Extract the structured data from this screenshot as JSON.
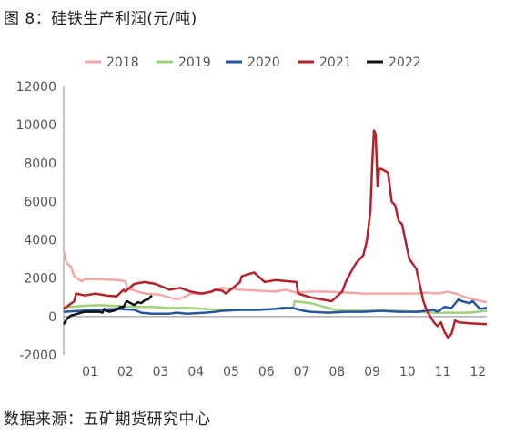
{
  "title": "图 8：硅铁生产利润(元/吨)",
  "source": "数据来源：五矿期货研究中心",
  "chart_data": {
    "type": "line",
    "title": "图 8：硅铁生产利润(元/吨)",
    "xlabel": "",
    "ylabel": "",
    "ylim": [
      -2000,
      12000
    ],
    "yticks": [
      -2000,
      0,
      2000,
      4000,
      6000,
      8000,
      10000,
      12000
    ],
    "xlim": [
      0,
      12
    ],
    "xticks": [
      {
        "pos": 0.75,
        "label": "01"
      },
      {
        "pos": 1.75,
        "label": "02"
      },
      {
        "pos": 2.75,
        "label": "03"
      },
      {
        "pos": 3.75,
        "label": "04"
      },
      {
        "pos": 4.75,
        "label": "05"
      },
      {
        "pos": 5.75,
        "label": "06"
      },
      {
        "pos": 6.75,
        "label": "07"
      },
      {
        "pos": 7.75,
        "label": "08"
      },
      {
        "pos": 8.75,
        "label": "09"
      },
      {
        "pos": 9.75,
        "label": "10"
      },
      {
        "pos": 10.75,
        "label": "11"
      },
      {
        "pos": 11.75,
        "label": "12"
      }
    ],
    "grid": false,
    "legend_position": "top",
    "series": [
      {
        "name": "2018",
        "color": "#f2a7a7",
        "width": 2.5,
        "x": [
          0,
          0.08,
          0.2,
          0.3,
          0.5,
          0.6,
          1.0,
          1.5,
          1.75,
          1.8,
          2.1,
          2.3,
          2.7,
          3.0,
          3.2,
          3.4,
          3.6,
          4.0,
          4.3,
          4.5,
          5.0,
          5.5,
          6.0,
          6.3,
          6.6,
          7.0,
          7.5,
          8.0,
          8.5,
          9.0,
          9.5,
          10.0,
          10.3,
          10.6,
          10.9,
          11.0,
          11.2,
          11.4,
          11.6,
          12.0
        ],
        "y": [
          3400,
          2800,
          2600,
          2100,
          1850,
          1950,
          1950,
          1900,
          1850,
          1500,
          1300,
          1200,
          1150,
          1000,
          900,
          1000,
          1200,
          1200,
          1400,
          1500,
          1400,
          1350,
          1300,
          1400,
          1250,
          1300,
          1300,
          1250,
          1200,
          1200,
          1200,
          1200,
          1250,
          1200,
          1300,
          1250,
          1150,
          1000,
          900,
          750
        ]
      },
      {
        "name": "2019",
        "color": "#9ed17a",
        "width": 2.5,
        "x": [
          0,
          0.2,
          0.5,
          1.0,
          1.5,
          2.0,
          2.5,
          3.0,
          3.5,
          4.0,
          4.5,
          5.0,
          5.5,
          6.0,
          6.5,
          6.55,
          7.0,
          7.3,
          7.7,
          8.0,
          8.5,
          9.0,
          9.5,
          10.0,
          10.5,
          11.0,
          11.5,
          12.0
        ],
        "y": [
          500,
          500,
          550,
          600,
          550,
          500,
          500,
          450,
          450,
          400,
          350,
          350,
          350,
          400,
          420,
          800,
          700,
          550,
          350,
          300,
          300,
          300,
          300,
          250,
          200,
          200,
          200,
          300
        ]
      },
      {
        "name": "2020",
        "color": "#2656a3",
        "width": 2.5,
        "x": [
          0,
          0.5,
          1.0,
          1.5,
          2.0,
          2.2,
          2.5,
          3.0,
          3.2,
          3.5,
          4.0,
          4.3,
          4.5,
          5.0,
          5.5,
          6.0,
          6.2,
          6.5,
          6.8,
          7.0,
          7.5,
          8.0,
          8.5,
          9.0,
          9.5,
          10.0,
          10.5,
          10.6,
          10.8,
          11.0,
          11.2,
          11.3,
          11.5,
          11.6,
          11.8,
          12.0
        ],
        "y": [
          250,
          300,
          350,
          400,
          350,
          200,
          150,
          150,
          200,
          150,
          200,
          250,
          300,
          350,
          350,
          400,
          450,
          450,
          300,
          250,
          200,
          250,
          250,
          300,
          250,
          250,
          350,
          250,
          500,
          450,
          900,
          800,
          700,
          800,
          400,
          450
        ]
      },
      {
        "name": "2021",
        "color": "#b3212b",
        "width": 2.5,
        "x": [
          0,
          0.3,
          0.35,
          0.6,
          0.9,
          1.2,
          1.5,
          1.7,
          1.75,
          2.0,
          2.3,
          2.6,
          3.0,
          3.3,
          3.6,
          3.9,
          4.2,
          4.3,
          4.5,
          4.6,
          4.8,
          5.0,
          5.05,
          5.4,
          5.7,
          6.0,
          6.3,
          6.6,
          6.65,
          7.0,
          7.3,
          7.6,
          7.9,
          8.0,
          8.2,
          8.3,
          8.5,
          8.6,
          8.7,
          8.75,
          8.8,
          8.85,
          8.9,
          8.95,
          9.0,
          9.2,
          9.3,
          9.4,
          9.5,
          9.6,
          9.8,
          10.0,
          10.2,
          10.3,
          10.4,
          10.5,
          10.55,
          10.6,
          10.7,
          10.8,
          10.9,
          11.0,
          11.1,
          11.2,
          11.5,
          12.0
        ],
        "y": [
          400,
          800,
          1200,
          1100,
          1200,
          1100,
          1050,
          1400,
          1300,
          1700,
          1800,
          1700,
          1400,
          1500,
          1300,
          1200,
          1300,
          1400,
          1350,
          1200,
          1500,
          1800,
          2100,
          2300,
          1800,
          1900,
          1850,
          1800,
          1200,
          1000,
          900,
          800,
          1300,
          1800,
          2500,
          2800,
          3200,
          4000,
          5500,
          8000,
          9700,
          9500,
          6800,
          7700,
          7700,
          7500,
          6000,
          5800,
          5000,
          4800,
          3000,
          2500,
          800,
          300,
          0,
          -300,
          -400,
          -500,
          -300,
          -800,
          -1100,
          -900,
          -200,
          -300,
          -350,
          -400
        ]
      },
      {
        "name": "2022",
        "color": "#111111",
        "width": 2.5,
        "x": [
          0,
          0.1,
          0.2,
          0.3,
          0.4,
          0.5,
          0.6,
          0.7,
          0.8,
          0.9,
          1.0,
          1.1,
          1.15,
          1.2,
          1.3,
          1.4,
          1.5,
          1.6,
          1.7,
          1.75,
          1.8,
          1.9,
          2.0,
          2.1,
          2.2,
          2.3,
          2.4,
          2.5
        ],
        "y": [
          -400,
          -100,
          50,
          100,
          150,
          200,
          250,
          250,
          250,
          250,
          250,
          200,
          400,
          300,
          250,
          300,
          350,
          500,
          500,
          700,
          800,
          700,
          600,
          750,
          700,
          850,
          900,
          1100
        ]
      }
    ]
  }
}
